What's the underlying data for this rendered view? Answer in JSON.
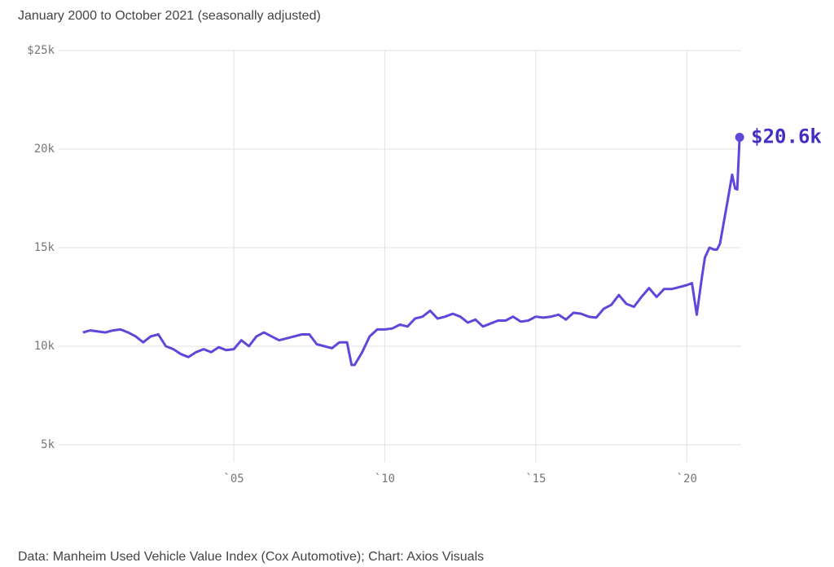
{
  "chart_data": {
    "type": "line",
    "subtitle": "January 2000 to October 2021 (seasonally adjusted)",
    "source": "Data: Manheim Used Vehicle Value Index (Cox Automotive); Chart: Axios Visuals",
    "x": [
      2000,
      2000.25,
      2000.5,
      2000.75,
      2001,
      2001.25,
      2001.5,
      2001.75,
      2002,
      2002.25,
      2002.5,
      2002.75,
      2003,
      2003.25,
      2003.5,
      2003.75,
      2004,
      2004.25,
      2004.5,
      2004.75,
      2005,
      2005.25,
      2005.5,
      2005.75,
      2006,
      2006.25,
      2006.5,
      2006.75,
      2007,
      2007.25,
      2007.5,
      2007.75,
      2008,
      2008.25,
      2008.5,
      2008.75,
      2008.9,
      2009,
      2009.25,
      2009.5,
      2009.75,
      2010,
      2010.25,
      2010.5,
      2010.75,
      2011,
      2011.25,
      2011.5,
      2011.75,
      2012,
      2012.25,
      2012.5,
      2012.75,
      2013,
      2013.25,
      2013.5,
      2013.75,
      2014,
      2014.25,
      2014.5,
      2014.75,
      2015,
      2015.25,
      2015.5,
      2015.75,
      2016,
      2016.25,
      2016.5,
      2016.75,
      2017,
      2017.25,
      2017.5,
      2017.75,
      2018,
      2018.25,
      2018.5,
      2018.75,
      2019,
      2019.25,
      2019.5,
      2019.75,
      2020,
      2020.17,
      2020.33,
      2020.5,
      2020.6,
      2020.75,
      2020.9,
      2021,
      2021.1,
      2021.25,
      2021.4,
      2021.5,
      2021.6,
      2021.67,
      2021.75
    ],
    "series": [
      {
        "name": "Manheim index",
        "color": "#5f47d9",
        "values": [
          10700,
          10800,
          10750,
          10700,
          10800,
          10850,
          10700,
          10500,
          10200,
          10500,
          10600,
          10000,
          9850,
          9600,
          9450,
          9700,
          9850,
          9700,
          9950,
          9800,
          9850,
          10300,
          10000,
          10500,
          10700,
          10500,
          10300,
          10400,
          10500,
          10600,
          10600,
          10100,
          10000,
          9900,
          10200,
          10200,
          9050,
          9050,
          9700,
          10500,
          10850,
          10850,
          10900,
          11100,
          11000,
          11400,
          11500,
          11800,
          11400,
          11500,
          11650,
          11500,
          11200,
          11350,
          11000,
          11150,
          11300,
          11300,
          11500,
          11250,
          11300,
          11500,
          11450,
          11500,
          11600,
          11350,
          11700,
          11650,
          11500,
          11450,
          11900,
          12100,
          12600,
          12150,
          12000,
          12500,
          12950,
          12500,
          12900,
          12900,
          13000,
          13100,
          13200,
          11600,
          13500,
          14500,
          15000,
          14900,
          14900,
          15200,
          16500,
          17800,
          18700,
          18000,
          17950,
          20600
        ]
      }
    ],
    "annotation": {
      "x": 2021.75,
      "y": 20600,
      "label": "$20.6k"
    },
    "xlim": [
      1999.2,
      2021.8
    ],
    "xticks": [
      {
        "value": 2005,
        "label": "`05"
      },
      {
        "value": 2010,
        "label": "`10"
      },
      {
        "value": 2015,
        "label": "`15"
      },
      {
        "value": 2020,
        "label": "`20"
      }
    ],
    "ylim": [
      5000,
      25000
    ],
    "yticks": [
      {
        "value": 5000,
        "label": "5k"
      },
      {
        "value": 10000,
        "label": "10k"
      },
      {
        "value": 15000,
        "label": "15k"
      },
      {
        "value": 20000,
        "label": "20k"
      },
      {
        "value": 25000,
        "label": "$25k"
      }
    ],
    "grid": true
  }
}
